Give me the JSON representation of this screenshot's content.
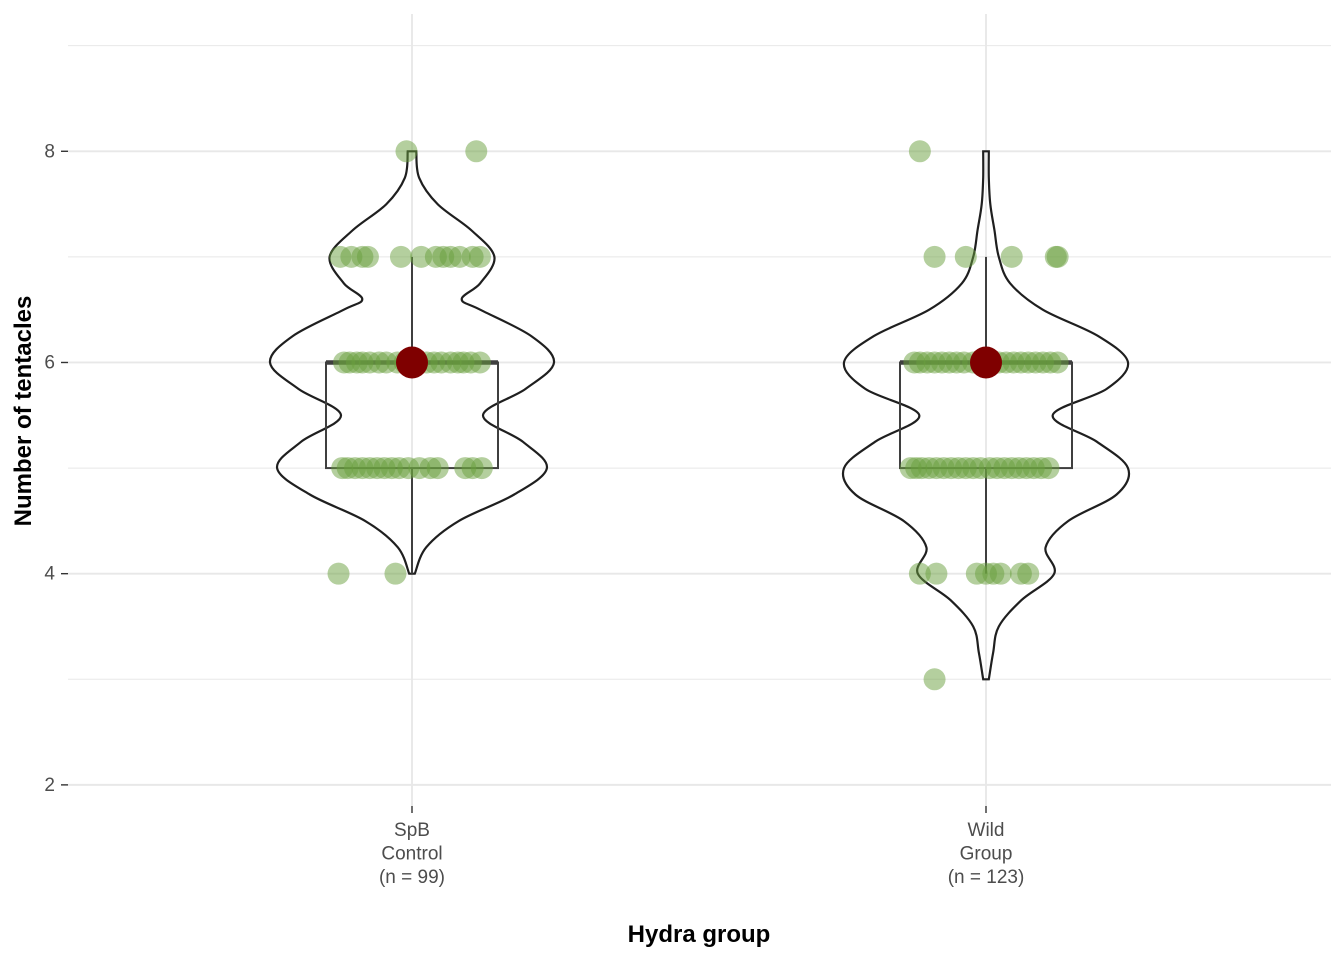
{
  "chart_data": {
    "type": "violin-box-jitter",
    "title": "",
    "xlabel": "Hydra group",
    "ylabel": "Number of tentacles",
    "ylim": [
      1.8,
      9.3
    ],
    "y_ticks": [
      2,
      4,
      6,
      8
    ],
    "y_tick_labels": [
      "2",
      "4",
      "6",
      "8"
    ],
    "grid": true,
    "legend": "none",
    "categories": [
      {
        "label_lines": [
          "SpB",
          "Control",
          "(n = 99)"
        ]
      },
      {
        "label_lines": [
          "Wild",
          "Group",
          "(n = 123)"
        ]
      }
    ],
    "colors": {
      "points": "#6a9f3e",
      "mean": "#7f0000",
      "box": "#3f3f3f",
      "violin": "#1f1f1f",
      "grid": "#e8e8e8"
    },
    "groups": [
      {
        "n": 99,
        "box": {
          "min": 4,
          "q1": 5,
          "median": 6,
          "q3": 6,
          "max": 7
        },
        "mean": 6,
        "violin_range": [
          4,
          8
        ],
        "violin_density": [
          [
            4.0,
            0.02
          ],
          [
            4.25,
            0.1
          ],
          [
            4.5,
            0.33
          ],
          [
            4.75,
            0.72
          ],
          [
            5.0,
            0.95
          ],
          [
            5.25,
            0.78
          ],
          [
            5.5,
            0.5
          ],
          [
            5.75,
            0.8
          ],
          [
            6.0,
            1.0
          ],
          [
            6.25,
            0.84
          ],
          [
            6.5,
            0.48
          ],
          [
            6.6,
            0.35
          ],
          [
            6.75,
            0.48
          ],
          [
            7.0,
            0.58
          ],
          [
            7.25,
            0.42
          ],
          [
            7.5,
            0.18
          ],
          [
            7.75,
            0.05
          ],
          [
            8.0,
            0.03
          ]
        ],
        "points": [
          {
            "y": 8,
            "dx": -0.03
          },
          {
            "y": 8,
            "dx": 0.35
          },
          {
            "y": 7,
            "dx": -0.39
          },
          {
            "y": 7,
            "dx": -0.33
          },
          {
            "y": 7,
            "dx": -0.27
          },
          {
            "y": 7,
            "dx": -0.24
          },
          {
            "y": 7,
            "dx": -0.06
          },
          {
            "y": 7,
            "dx": 0.05
          },
          {
            "y": 7,
            "dx": 0.13
          },
          {
            "y": 7,
            "dx": 0.17
          },
          {
            "y": 7,
            "dx": 0.21
          },
          {
            "y": 7,
            "dx": 0.26
          },
          {
            "y": 7,
            "dx": 0.33
          },
          {
            "y": 7,
            "dx": 0.37
          },
          {
            "y": 6,
            "dx": -0.37
          },
          {
            "y": 6,
            "dx": -0.34
          },
          {
            "y": 6,
            "dx": -0.3
          },
          {
            "y": 6,
            "dx": -0.27
          },
          {
            "y": 6,
            "dx": -0.23
          },
          {
            "y": 6,
            "dx": -0.18
          },
          {
            "y": 6,
            "dx": -0.14
          },
          {
            "y": 6,
            "dx": -0.08
          },
          {
            "y": 6,
            "dx": -0.04
          },
          {
            "y": 6,
            "dx": 0.03
          },
          {
            "y": 6,
            "dx": 0.08
          },
          {
            "y": 6,
            "dx": 0.12
          },
          {
            "y": 6,
            "dx": 0.16
          },
          {
            "y": 6,
            "dx": 0.21
          },
          {
            "y": 6,
            "dx": 0.25
          },
          {
            "y": 6,
            "dx": 0.28
          },
          {
            "y": 6,
            "dx": 0.32
          },
          {
            "y": 6,
            "dx": 0.37
          },
          {
            "y": 5,
            "dx": -0.38
          },
          {
            "y": 5,
            "dx": -0.35
          },
          {
            "y": 5,
            "dx": -0.31
          },
          {
            "y": 5,
            "dx": -0.27
          },
          {
            "y": 5,
            "dx": -0.23
          },
          {
            "y": 5,
            "dx": -0.19
          },
          {
            "y": 5,
            "dx": -0.15
          },
          {
            "y": 5,
            "dx": -0.11
          },
          {
            "y": 5,
            "dx": -0.07
          },
          {
            "y": 5,
            "dx": -0.02
          },
          {
            "y": 5,
            "dx": 0.04
          },
          {
            "y": 5,
            "dx": 0.1
          },
          {
            "y": 5,
            "dx": 0.14
          },
          {
            "y": 5,
            "dx": 0.29
          },
          {
            "y": 5,
            "dx": 0.33
          },
          {
            "y": 5,
            "dx": 0.38
          },
          {
            "y": 4,
            "dx": -0.4
          },
          {
            "y": 4,
            "dx": -0.09
          }
        ]
      },
      {
        "n": 123,
        "box": {
          "min": 4,
          "q1": 5,
          "median": 6,
          "q3": 6,
          "max": 7
        },
        "mean": 6,
        "violin_range": [
          3,
          8
        ],
        "violin_density": [
          [
            3.0,
            0.02
          ],
          [
            3.25,
            0.05
          ],
          [
            3.5,
            0.09
          ],
          [
            3.75,
            0.25
          ],
          [
            4.0,
            0.48
          ],
          [
            4.25,
            0.42
          ],
          [
            4.5,
            0.58
          ],
          [
            4.75,
            0.92
          ],
          [
            5.0,
            1.0
          ],
          [
            5.25,
            0.78
          ],
          [
            5.5,
            0.47
          ],
          [
            5.75,
            0.85
          ],
          [
            6.0,
            1.0
          ],
          [
            6.25,
            0.79
          ],
          [
            6.5,
            0.4
          ],
          [
            6.75,
            0.17
          ],
          [
            7.0,
            0.09
          ],
          [
            7.25,
            0.06
          ],
          [
            7.5,
            0.03
          ],
          [
            7.75,
            0.02
          ],
          [
            8.0,
            0.02
          ]
        ],
        "points": [
          {
            "y": 8,
            "dx": -0.36
          },
          {
            "y": 7,
            "dx": -0.28
          },
          {
            "y": 7,
            "dx": -0.11
          },
          {
            "y": 7,
            "dx": 0.14
          },
          {
            "y": 7,
            "dx": 0.38
          },
          {
            "y": 7,
            "dx": 0.39
          },
          {
            "y": 6,
            "dx": -0.39
          },
          {
            "y": 6,
            "dx": -0.36
          },
          {
            "y": 6,
            "dx": -0.32
          },
          {
            "y": 6,
            "dx": -0.28
          },
          {
            "y": 6,
            "dx": -0.24
          },
          {
            "y": 6,
            "dx": -0.2
          },
          {
            "y": 6,
            "dx": -0.16
          },
          {
            "y": 6,
            "dx": -0.12
          },
          {
            "y": 6,
            "dx": -0.07
          },
          {
            "y": 6,
            "dx": -0.03
          },
          {
            "y": 6,
            "dx": 0.03
          },
          {
            "y": 6,
            "dx": 0.07
          },
          {
            "y": 6,
            "dx": 0.11
          },
          {
            "y": 6,
            "dx": 0.15
          },
          {
            "y": 6,
            "dx": 0.19
          },
          {
            "y": 6,
            "dx": 0.23
          },
          {
            "y": 6,
            "dx": 0.27
          },
          {
            "y": 6,
            "dx": 0.31
          },
          {
            "y": 6,
            "dx": 0.35
          },
          {
            "y": 6,
            "dx": 0.39
          },
          {
            "y": 5,
            "dx": -0.41
          },
          {
            "y": 5,
            "dx": -0.38
          },
          {
            "y": 5,
            "dx": -0.35
          },
          {
            "y": 5,
            "dx": -0.31
          },
          {
            "y": 5,
            "dx": -0.27
          },
          {
            "y": 5,
            "dx": -0.23
          },
          {
            "y": 5,
            "dx": -0.19
          },
          {
            "y": 5,
            "dx": -0.15
          },
          {
            "y": 5,
            "dx": -0.11
          },
          {
            "y": 5,
            "dx": -0.07
          },
          {
            "y": 5,
            "dx": -0.03
          },
          {
            "y": 5,
            "dx": 0.02
          },
          {
            "y": 5,
            "dx": 0.06
          },
          {
            "y": 5,
            "dx": 0.1
          },
          {
            "y": 5,
            "dx": 0.14
          },
          {
            "y": 5,
            "dx": 0.18
          },
          {
            "y": 5,
            "dx": 0.22
          },
          {
            "y": 5,
            "dx": 0.26
          },
          {
            "y": 5,
            "dx": 0.3
          },
          {
            "y": 5,
            "dx": 0.34
          },
          {
            "y": 4,
            "dx": -0.36
          },
          {
            "y": 4,
            "dx": -0.27
          },
          {
            "y": 4,
            "dx": -0.05
          },
          {
            "y": 4,
            "dx": 0.0
          },
          {
            "y": 4,
            "dx": 0.04
          },
          {
            "y": 4,
            "dx": 0.08
          },
          {
            "y": 4,
            "dx": 0.19
          },
          {
            "y": 4,
            "dx": 0.23
          },
          {
            "y": 3,
            "dx": -0.28
          }
        ]
      }
    ]
  }
}
